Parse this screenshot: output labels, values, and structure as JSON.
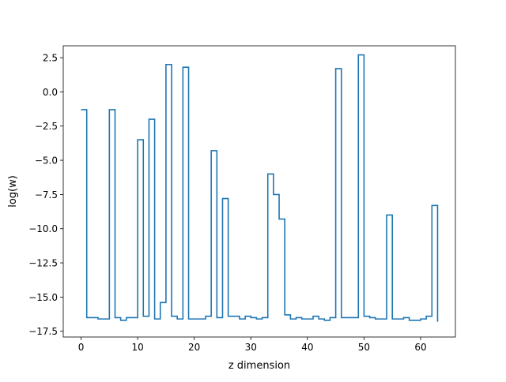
{
  "chart_data": {
    "type": "line",
    "drawstyle": "steps-post",
    "title": "",
    "xlabel": "z dimension",
    "ylabel": "log(w)",
    "xlim": [
      -3.15,
      66.15
    ],
    "ylim": [
      -17.92,
      3.37
    ],
    "xticks": [
      0,
      10,
      20,
      30,
      40,
      50,
      60
    ],
    "xtick_labels": [
      "0",
      "10",
      "20",
      "30",
      "40",
      "50",
      "60"
    ],
    "yticks": [
      2.5,
      0.0,
      -2.5,
      -5.0,
      -7.5,
      -10.0,
      -12.5,
      -15.0,
      -17.5
    ],
    "ytick_labels": [
      "2.5",
      "0.0",
      "−2.5",
      "−5.0",
      "−7.5",
      "−10.0",
      "−12.5",
      "−15.0",
      "−17.5"
    ],
    "grid": false,
    "legend": "none",
    "color": "#1f77b4",
    "x": [
      0,
      1,
      2,
      3,
      4,
      5,
      6,
      7,
      8,
      9,
      10,
      11,
      12,
      13,
      14,
      15,
      16,
      17,
      18,
      19,
      20,
      21,
      22,
      23,
      24,
      25,
      26,
      27,
      28,
      29,
      30,
      31,
      32,
      33,
      34,
      35,
      36,
      37,
      38,
      39,
      40,
      41,
      42,
      43,
      44,
      45,
      46,
      47,
      48,
      49,
      50,
      51,
      52,
      53,
      54,
      55,
      56,
      57,
      58,
      59,
      60,
      61,
      62,
      63
    ],
    "values": [
      -1.3,
      -16.5,
      -16.5,
      -16.6,
      -16.6,
      -1.3,
      -16.5,
      -16.7,
      -16.5,
      -16.5,
      -3.5,
      -16.4,
      -2.0,
      -16.6,
      -15.4,
      2.0,
      -16.4,
      -16.6,
      1.8,
      -16.6,
      -16.6,
      -16.6,
      -16.4,
      -4.3,
      -16.5,
      -7.8,
      -16.4,
      -16.4,
      -16.6,
      -16.4,
      -16.5,
      -16.6,
      -16.5,
      -6.0,
      -7.5,
      -9.3,
      -16.3,
      -16.6,
      -16.5,
      -16.6,
      -16.6,
      -16.4,
      -16.6,
      -16.7,
      -16.5,
      1.7,
      -16.5,
      -16.5,
      -16.5,
      2.7,
      -16.4,
      -16.5,
      -16.6,
      -16.6,
      -9.0,
      -16.6,
      -16.6,
      -16.5,
      -16.7,
      -16.7,
      -16.6,
      -16.4,
      -8.3,
      -16.8
    ]
  }
}
